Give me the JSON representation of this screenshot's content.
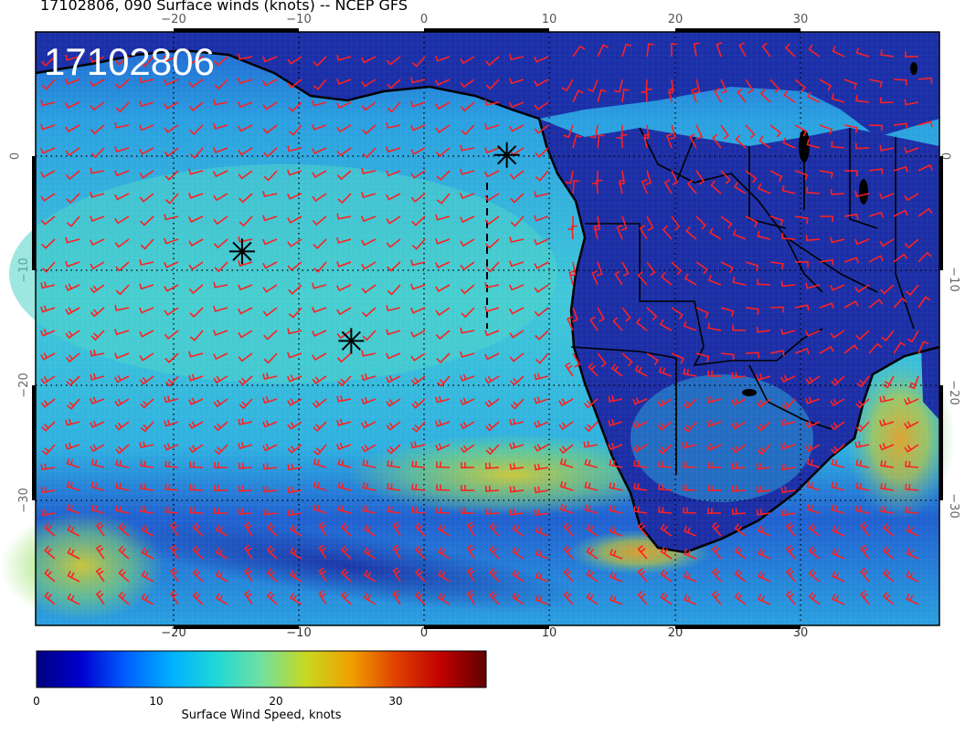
{
  "header": {
    "title": "17102806, 090 Surface winds (knots) -- NCEP GFS"
  },
  "map": {
    "stamp": "17102806",
    "lon_ticks": [
      "−20",
      "−10",
      "0",
      "10",
      "20",
      "30"
    ],
    "lat_ticks": [
      "0",
      "−10",
      "−20",
      "−30"
    ],
    "markers": [
      {
        "lon": -14.5,
        "lat": -8.3
      },
      {
        "lon": -5.8,
        "lat": -16.1
      },
      {
        "lon": 6.6,
        "lat": 0.1
      }
    ],
    "land_color": "#1a2fa8",
    "ocean_color": "#2d9bd4",
    "barb_color": "#ff2020"
  },
  "colorbar": {
    "label": "Surface Wind Speed, knots",
    "ticks": [
      "0",
      "10",
      "20",
      "30"
    ],
    "colors": [
      "#000080",
      "#0000d0",
      "#0060ff",
      "#00b0ff",
      "#20d8d8",
      "#70e0a0",
      "#c8d820",
      "#f0a000",
      "#e04000",
      "#c00000",
      "#600000"
    ]
  }
}
